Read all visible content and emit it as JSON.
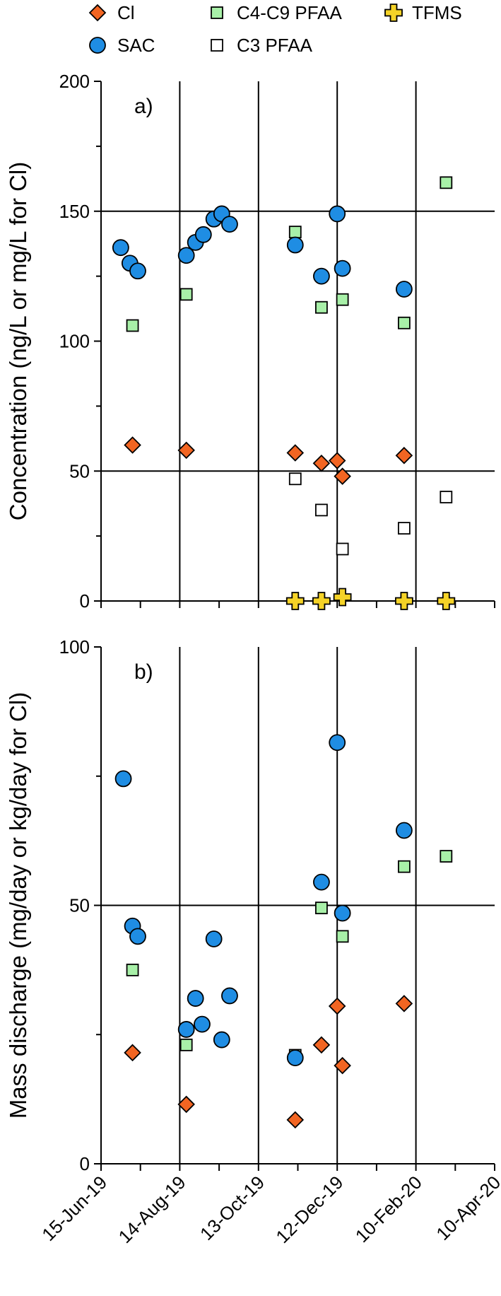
{
  "chart_data": [
    {
      "panel_label": "a)",
      "type": "scatter",
      "ylabel": "Concentration (ng/L or mg/L for Cl)",
      "ylim": [
        0,
        200
      ],
      "yticks": [
        0,
        50,
        100,
        150,
        200
      ],
      "series": [
        {
          "name": "Cl",
          "marker": "diamond",
          "color": "#f26522",
          "x": [
            "2019-07-09",
            "2019-08-19",
            "2019-11-10",
            "2019-11-30",
            "2019-12-12",
            "2019-12-16",
            "2020-02-01"
          ],
          "y": [
            60,
            58,
            57,
            53,
            54,
            48,
            56
          ]
        },
        {
          "name": "SAC",
          "marker": "circle",
          "color": "#1f8de3",
          "x": [
            "2019-06-30",
            "2019-07-07",
            "2019-07-13",
            "2019-08-19",
            "2019-08-26",
            "2019-09-01",
            "2019-09-09",
            "2019-09-15",
            "2019-09-21",
            "2019-11-10",
            "2019-11-30",
            "2019-12-12",
            "2019-12-16",
            "2020-02-01"
          ],
          "y": [
            136,
            130,
            127,
            133,
            138,
            141,
            147,
            149,
            145,
            137,
            125,
            149,
            128,
            120
          ]
        },
        {
          "name": "C4-C9 PFAA",
          "marker": "square",
          "color": "#a8f0a8",
          "x": [
            "2019-07-09",
            "2019-08-19",
            "2019-11-10",
            "2019-11-30",
            "2019-12-16",
            "2020-02-01",
            "2020-03-04"
          ],
          "y": [
            106,
            118,
            142,
            113,
            116,
            107,
            161
          ]
        },
        {
          "name": "C3 PFAA",
          "marker": "square",
          "color": "#ffffff",
          "x": [
            "2019-11-10",
            "2019-11-30",
            "2019-12-16",
            "2020-02-01",
            "2020-03-04"
          ],
          "y": [
            47,
            35,
            20,
            28,
            40
          ]
        },
        {
          "name": "TFMS",
          "marker": "cross",
          "color": "#f5d327",
          "x": [
            "2019-11-10",
            "2019-11-30",
            "2019-12-16",
            "2020-02-01",
            "2020-03-04"
          ],
          "y": [
            0,
            0,
            1.5,
            0,
            0
          ]
        }
      ]
    },
    {
      "panel_label": "b)",
      "type": "scatter",
      "ylabel": "Mass discharge (mg/day or kg/day for Cl)",
      "ylim": [
        0,
        100
      ],
      "yticks": [
        0,
        50,
        100
      ],
      "series": [
        {
          "name": "Cl",
          "marker": "diamond",
          "color": "#f26522",
          "x": [
            "2019-07-09",
            "2019-08-19",
            "2019-11-10",
            "2019-11-30",
            "2019-12-12",
            "2019-12-16",
            "2020-02-01"
          ],
          "y": [
            21.5,
            11.5,
            8.5,
            23,
            30.5,
            19,
            31
          ]
        },
        {
          "name": "SAC",
          "marker": "circle",
          "color": "#1f8de3",
          "x": [
            "2019-07-02",
            "2019-07-09",
            "2019-07-13",
            "2019-08-19",
            "2019-08-26",
            "2019-08-31",
            "2019-09-09",
            "2019-09-15",
            "2019-09-21",
            "2019-11-10",
            "2019-11-30",
            "2019-12-12",
            "2019-12-16",
            "2020-02-01"
          ],
          "y": [
            74.5,
            46,
            44,
            26,
            32,
            27,
            43.5,
            24,
            32.5,
            20.5,
            54.5,
            81.5,
            48.5,
            64.5
          ]
        },
        {
          "name": "C4-C9 PFAA",
          "marker": "square",
          "color": "#a8f0a8",
          "x": [
            "2019-07-09",
            "2019-08-19",
            "2019-11-10",
            "2019-11-30",
            "2019-12-16",
            "2020-02-01",
            "2020-03-04"
          ],
          "y": [
            37.5,
            23,
            21,
            49.5,
            44,
            57.5,
            59.5
          ]
        }
      ]
    }
  ],
  "x_axis": {
    "ticks": [
      "2019-06-15",
      "2019-08-14",
      "2019-10-13",
      "2019-12-12",
      "2020-02-10",
      "2020-04-10"
    ],
    "tick_labels": [
      "15-Jun-19",
      "14-Aug-19",
      "13-Oct-19",
      "12-Dec-19",
      "10-Feb-20",
      "10-Apr-20"
    ],
    "range": [
      "2019-06-15",
      "2020-04-10"
    ]
  },
  "legend": {
    "placement": "top",
    "items": [
      {
        "label": "Cl",
        "marker": "diamond",
        "color": "#f26522"
      },
      {
        "label": "SAC",
        "marker": "circle",
        "color": "#1f8de3"
      },
      {
        "label": "C4-C9 PFAA",
        "marker": "square",
        "color": "#a8f0a8"
      },
      {
        "label": "C3 PFAA",
        "marker": "square",
        "color": "#ffffff"
      },
      {
        "label": "TFMS",
        "marker": "cross",
        "color": "#f5d327"
      }
    ]
  },
  "grid": "vertical at x ticks, horizontal at 50 and 150"
}
